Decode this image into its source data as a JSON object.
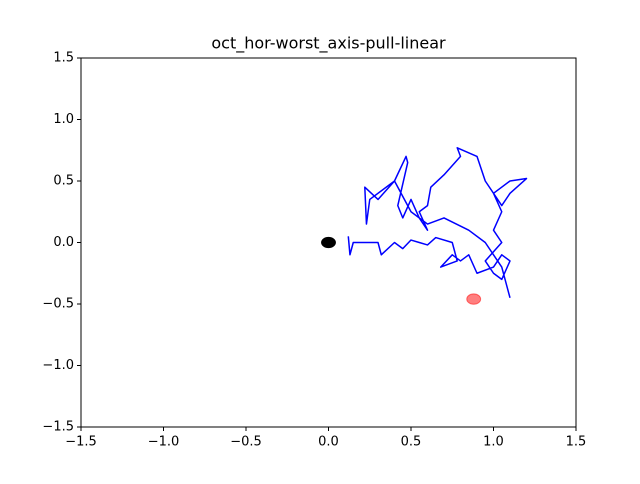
{
  "chart_data": {
    "type": "line",
    "title": "oct_hor-worst_axis-pull-linear",
    "xlim": [
      -1.5,
      1.5
    ],
    "ylim": [
      -1.5,
      1.5
    ],
    "xticks": [
      {
        "value": -1.5,
        "label": "−1.5"
      },
      {
        "value": -1.0,
        "label": "−1.0"
      },
      {
        "value": -0.5,
        "label": "−0.5"
      },
      {
        "value": 0.0,
        "label": "0.0"
      },
      {
        "value": 0.5,
        "label": "0.5"
      },
      {
        "value": 1.0,
        "label": "1.0"
      },
      {
        "value": 1.5,
        "label": "1.5"
      }
    ],
    "yticks": [
      {
        "value": -1.5,
        "label": "−1.5"
      },
      {
        "value": -1.0,
        "label": "−1.0"
      },
      {
        "value": -0.5,
        "label": "−0.5"
      },
      {
        "value": 0.0,
        "label": "0.0"
      },
      {
        "value": 0.5,
        "label": "0.5"
      },
      {
        "value": 1.0,
        "label": "1.0"
      },
      {
        "value": 1.5,
        "label": "1.5"
      }
    ],
    "series": [
      {
        "color": "#0000ff",
        "x": [
          0.12,
          0.13,
          0.15,
          0.3,
          0.32,
          0.4,
          0.45,
          0.5,
          0.55,
          0.6,
          0.65,
          0.75,
          0.78,
          0.68,
          0.75,
          0.8,
          0.85,
          0.9,
          1.0,
          1.05,
          1.1,
          1.05,
          1.0,
          0.95,
          1.05,
          1.0,
          1.05,
          1.0,
          1.1,
          1.2,
          1.1,
          1.05,
          0.95,
          0.9,
          0.78,
          0.8,
          0.7,
          0.62,
          0.6,
          0.55,
          0.6,
          0.55,
          0.5,
          0.45,
          0.42,
          0.48,
          0.47,
          0.4,
          0.3,
          0.22,
          0.23,
          0.25,
          0.4,
          0.5,
          0.6,
          0.7,
          0.85,
          0.95,
          1.05,
          1.1
        ],
        "y": [
          0.05,
          -0.1,
          0.0,
          0.0,
          -0.1,
          0.0,
          -0.05,
          0.02,
          0.0,
          -0.02,
          0.04,
          0.0,
          -0.15,
          -0.2,
          -0.1,
          -0.15,
          -0.1,
          -0.25,
          -0.2,
          -0.1,
          -0.15,
          -0.3,
          -0.25,
          -0.15,
          0.0,
          0.1,
          0.25,
          0.4,
          0.5,
          0.52,
          0.4,
          0.3,
          0.5,
          0.7,
          0.77,
          0.7,
          0.55,
          0.45,
          0.3,
          0.25,
          0.1,
          0.2,
          0.35,
          0.2,
          0.3,
          0.65,
          0.7,
          0.5,
          0.35,
          0.45,
          0.15,
          0.35,
          0.5,
          0.25,
          0.15,
          0.2,
          0.1,
          0.0,
          -0.2,
          -0.45
        ]
      }
    ],
    "markers": [
      {
        "x": 0.0,
        "y": 0.0,
        "radius": 0.042,
        "color": "#000000",
        "alpha": 1
      },
      {
        "x": 0.88,
        "y": -0.46,
        "radius": 0.042,
        "color": "#ff0000",
        "alpha": 0.5
      }
    ]
  }
}
